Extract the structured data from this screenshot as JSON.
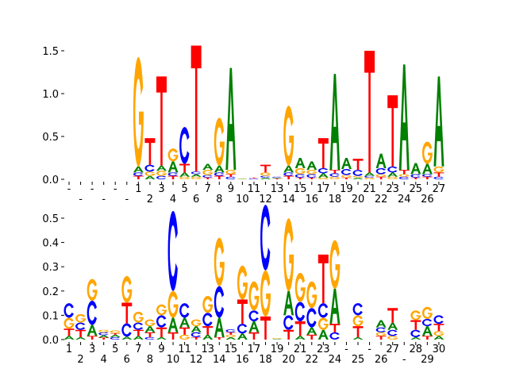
{
  "colors": {
    "A": "#008000",
    "C": "#0000ff",
    "G": "#ffa500",
    "T": "#ff0000"
  },
  "chart_data": [
    {
      "type": "sequence-logo",
      "ylim": [
        0,
        1.6
      ],
      "yticks": [
        "0.0",
        "0.5",
        "1.0",
        "1.5"
      ],
      "ytick_values": [
        0,
        0.5,
        1.0,
        1.5
      ],
      "xtick_labels": [
        "-",
        "-",
        "-",
        "-",
        "-",
        "-",
        "1",
        "2",
        "3",
        "4",
        "5",
        "6",
        "7",
        "8",
        "9",
        "10",
        "11",
        "12",
        "13",
        "14",
        "15",
        "16",
        "17",
        "18",
        "19",
        "20",
        "21",
        "22",
        "23",
        "24",
        "25",
        "26",
        "27"
      ],
      "columns": [
        [],
        [],
        [],
        [],
        [],
        [],
        [
          [
            "T",
            0.04
          ],
          [
            "C",
            0.04
          ],
          [
            "A",
            0.07
          ],
          [
            "G",
            1.28
          ]
        ],
        [
          [
            "A",
            0.04
          ],
          [
            "G",
            0.05
          ],
          [
            "C",
            0.08
          ],
          [
            "T",
            0.31
          ]
        ],
        [
          [
            "C",
            0.04
          ],
          [
            "G",
            0.06
          ],
          [
            "A",
            0.06
          ],
          [
            "T",
            1.04
          ]
        ],
        [
          [
            "T",
            0.04
          ],
          [
            "C",
            0.04
          ],
          [
            "A",
            0.13
          ],
          [
            "G",
            0.15
          ]
        ],
        [
          [
            "G",
            0.03
          ],
          [
            "A",
            0.05
          ],
          [
            "T",
            0.1
          ],
          [
            "C",
            0.43
          ]
        ],
        [
          [
            "G",
            0.03
          ],
          [
            "A",
            0.03
          ],
          [
            "C",
            0.03
          ],
          [
            "T",
            1.47
          ]
        ],
        [
          [
            "T",
            0.02
          ],
          [
            "C",
            0.03
          ],
          [
            "G",
            0.06
          ],
          [
            "A",
            0.07
          ]
        ],
        [
          [
            "T",
            0.04
          ],
          [
            "C",
            0.04
          ],
          [
            "A",
            0.08
          ],
          [
            "G",
            0.56
          ]
        ],
        [
          [
            "C",
            0.03
          ],
          [
            "T",
            0.03
          ],
          [
            "G",
            0.05
          ],
          [
            "A",
            1.19
          ]
        ],
        [
          [
            "A",
            0.005
          ],
          [
            "G",
            0.005
          ]
        ],
        [
          [
            "C",
            0.01
          ],
          [
            "T",
            0.01
          ]
        ],
        [
          [
            "A",
            0.02
          ],
          [
            "C",
            0.02
          ],
          [
            "G",
            0.04
          ],
          [
            "T",
            0.09
          ]
        ],
        [
          [
            "T",
            0.01
          ],
          [
            "A",
            0.01
          ],
          [
            "C",
            0.01
          ]
        ],
        [
          [
            "T",
            0.04
          ],
          [
            "C",
            0.04
          ],
          [
            "A",
            0.08
          ],
          [
            "G",
            0.7
          ]
        ],
        [
          [
            "T",
            0.02
          ],
          [
            "C",
            0.04
          ],
          [
            "G",
            0.07
          ],
          [
            "A",
            0.12
          ]
        ],
        [
          [
            "T",
            0.02
          ],
          [
            "C",
            0.04
          ],
          [
            "G",
            0.05
          ],
          [
            "A",
            0.1
          ]
        ],
        [
          [
            "G",
            0.02
          ],
          [
            "A",
            0.05
          ],
          [
            "C",
            0.06
          ],
          [
            "T",
            0.35
          ]
        ],
        [
          [
            "G",
            0.03
          ],
          [
            "C",
            0.04
          ],
          [
            "T",
            0.04
          ],
          [
            "A",
            1.12
          ]
        ],
        [
          [
            "T",
            0.02
          ],
          [
            "G",
            0.03
          ],
          [
            "C",
            0.07
          ],
          [
            "A",
            0.13
          ]
        ],
        [
          [
            "A",
            0.02
          ],
          [
            "G",
            0.02
          ],
          [
            "C",
            0.07
          ],
          [
            "T",
            0.13
          ]
        ],
        [
          [
            "G",
            0.02
          ],
          [
            "C",
            0.02
          ],
          [
            "A",
            0.04
          ],
          [
            "T",
            1.42
          ]
        ],
        [
          [
            "T",
            0.03
          ],
          [
            "G",
            0.03
          ],
          [
            "C",
            0.07
          ],
          [
            "A",
            0.17
          ]
        ],
        [
          [
            "G",
            0.03
          ],
          [
            "A",
            0.05
          ],
          [
            "C",
            0.07
          ],
          [
            "T",
            0.83
          ]
        ],
        [
          [
            "C",
            0.03
          ],
          [
            "G",
            0.03
          ],
          [
            "T",
            0.05
          ],
          [
            "A",
            1.23
          ]
        ],
        [
          [
            "T",
            0.02
          ],
          [
            "C",
            0.04
          ],
          [
            "A",
            0.13
          ]
        ],
        [
          [
            "T",
            0.03
          ],
          [
            "C",
            0.03
          ],
          [
            "A",
            0.12
          ],
          [
            "G",
            0.26
          ]
        ],
        [
          [
            "C",
            0.03
          ],
          [
            "T",
            0.05
          ],
          [
            "G",
            0.07
          ],
          [
            "A",
            1.05
          ]
        ]
      ]
    },
    {
      "type": "sequence-logo",
      "ylim": [
        0,
        0.56
      ],
      "yticks": [
        "0.0",
        "0.1",
        "0.2",
        "0.3",
        "0.4",
        "0.5"
      ],
      "ytick_values": [
        0,
        0.1,
        0.2,
        0.3,
        0.4,
        0.5
      ],
      "xtick_labels": [
        "1",
        "2",
        "3",
        "4",
        "5",
        "6",
        "7",
        "8",
        "9",
        "10",
        "11",
        "12",
        "13",
        "14",
        "15",
        "16",
        "17",
        "18",
        "19",
        "20",
        "21",
        "22",
        "23",
        "24",
        "-",
        "25",
        "-",
        "26",
        "27",
        "-",
        "28",
        "29",
        "30"
      ],
      "columns": [
        [
          [
            "A",
            0.015
          ],
          [
            "T",
            0.03
          ],
          [
            "G",
            0.045
          ],
          [
            "C",
            0.06
          ]
        ],
        [
          [
            "A",
            0.01
          ],
          [
            "T",
            0.03
          ],
          [
            "C",
            0.03
          ],
          [
            "G",
            0.035
          ]
        ],
        [
          [
            "T",
            0.015
          ],
          [
            "A",
            0.045
          ],
          [
            "C",
            0.1
          ],
          [
            "G",
            0.09
          ]
        ],
        [
          [
            "T",
            0.008
          ],
          [
            "A",
            0.01
          ],
          [
            "C",
            0.012
          ],
          [
            "G",
            0.01
          ]
        ],
        [
          [
            "C",
            0.01
          ],
          [
            "A",
            0.01
          ],
          [
            "T",
            0.006
          ],
          [
            "G",
            0.012
          ]
        ],
        [
          [
            "A",
            0.012
          ],
          [
            "C",
            0.055
          ],
          [
            "T",
            0.085
          ],
          [
            "G",
            0.11
          ]
        ],
        [
          [
            "A",
            0.015
          ],
          [
            "T",
            0.025
          ],
          [
            "C",
            0.03
          ],
          [
            "G",
            0.045
          ]
        ],
        [
          [
            "C",
            0.01
          ],
          [
            "T",
            0.02
          ],
          [
            "A",
            0.025
          ],
          [
            "G",
            0.028
          ]
        ],
        [
          [
            "A",
            0.01
          ],
          [
            "T",
            0.04
          ],
          [
            "C",
            0.05
          ],
          [
            "G",
            0.045
          ]
        ],
        [
          [
            "T",
            0.03
          ],
          [
            "A",
            0.06
          ],
          [
            "G",
            0.11
          ],
          [
            "C",
            0.33
          ]
        ],
        [
          [
            "G",
            0.02
          ],
          [
            "T",
            0.03
          ],
          [
            "A",
            0.04
          ],
          [
            "C",
            0.06
          ]
        ],
        [
          [
            "T",
            0.01
          ],
          [
            "C",
            0.02
          ],
          [
            "A",
            0.025
          ],
          [
            "G",
            0.028
          ]
        ],
        [
          [
            "A",
            0.02
          ],
          [
            "T",
            0.035
          ],
          [
            "C",
            0.055
          ],
          [
            "G",
            0.07
          ]
        ],
        [
          [
            "T",
            0.01
          ],
          [
            "A",
            0.08
          ],
          [
            "C",
            0.13
          ],
          [
            "G",
            0.2
          ]
        ],
        [
          [
            "A",
            0.01
          ],
          [
            "G",
            0.01
          ],
          [
            "T",
            0.01
          ],
          [
            "C",
            0.012
          ]
        ],
        [
          [
            "A",
            0.025
          ],
          [
            "C",
            0.04
          ],
          [
            "T",
            0.1
          ],
          [
            "G",
            0.14
          ]
        ],
        [
          [
            "T",
            0.03
          ],
          [
            "A",
            0.045
          ],
          [
            "C",
            0.045
          ],
          [
            "G",
            0.12
          ]
        ],
        [
          [
            "T",
            0.095
          ],
          [
            "G",
            0.19
          ],
          [
            "C",
            0.27
          ]
        ],
        [
          [
            "A",
            0.003
          ],
          [
            "G",
            0.003
          ]
        ],
        [
          [
            "T",
            0.04
          ],
          [
            "C",
            0.06
          ],
          [
            "A",
            0.1
          ],
          [
            "G",
            0.3
          ]
        ],
        [
          [
            "A",
            0.015
          ],
          [
            "T",
            0.06
          ],
          [
            "C",
            0.08
          ],
          [
            "G",
            0.12
          ]
        ],
        [
          [
            "T",
            0.02
          ],
          [
            "A",
            0.03
          ],
          [
            "C",
            0.08
          ],
          [
            "G",
            0.11
          ]
        ],
        [
          [
            "A",
            0.04
          ],
          [
            "G",
            0.05
          ],
          [
            "C",
            0.06
          ],
          [
            "T",
            0.2
          ]
        ],
        [
          [
            "C",
            0.03
          ],
          [
            "T",
            0.035
          ],
          [
            "A",
            0.145
          ],
          [
            "G",
            0.2
          ]
        ],
        [],
        [
          [
            "A",
            0.01
          ],
          [
            "T",
            0.045
          ],
          [
            "G",
            0.045
          ],
          [
            "C",
            0.05
          ]
        ],
        [],
        [
          [
            "T",
            0.015
          ],
          [
            "G",
            0.015
          ],
          [
            "C",
            0.02
          ],
          [
            "A",
            0.03
          ]
        ],
        [
          [
            "G",
            0.015
          ],
          [
            "C",
            0.025
          ],
          [
            "A",
            0.03
          ],
          [
            "T",
            0.06
          ]
        ],
        [],
        [
          [
            "A",
            0.01
          ],
          [
            "C",
            0.03
          ],
          [
            "T",
            0.04
          ],
          [
            "G",
            0.04
          ]
        ],
        [
          [
            "T",
            0.015
          ],
          [
            "A",
            0.04
          ],
          [
            "C",
            0.03
          ],
          [
            "G",
            0.05
          ]
        ],
        [
          [
            "A",
            0.015
          ],
          [
            "G",
            0.02
          ],
          [
            "T",
            0.03
          ],
          [
            "C",
            0.035
          ]
        ]
      ]
    }
  ]
}
